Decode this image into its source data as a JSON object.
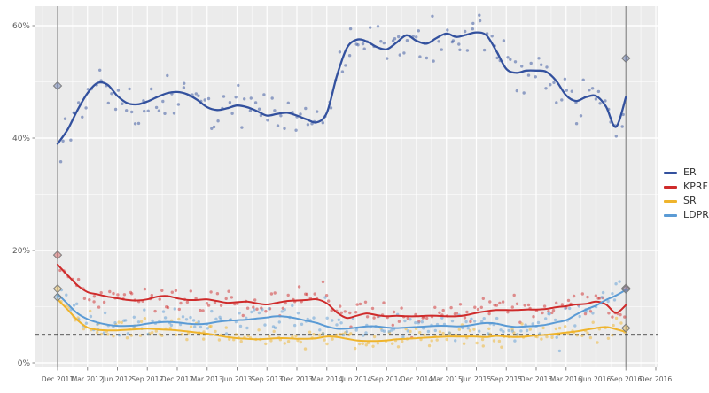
{
  "chart_data": {
    "type": "line",
    "title": "",
    "xlabel": "",
    "ylabel": "",
    "x_unit": "months since Dec 2011",
    "x_tick_step_months": 3,
    "x_tick_labels": [
      "Dec 2011",
      "Mar 2012",
      "Jun 2012",
      "Sep 2012",
      "Dec 2012",
      "Mar 2013",
      "Jun 2013",
      "Sep 2013",
      "Dec 2013",
      "Mar 2014",
      "Jun 2014",
      "Sep 2014",
      "Dec 2014",
      "Mar 2015",
      "Jun 2015",
      "Sep 2015",
      "Dec 2015",
      "Mar 2016",
      "Jun 2016",
      "Sep 2016",
      "Dec 2016"
    ],
    "y_ticks": [
      0,
      20,
      40,
      60
    ],
    "y_tick_labels": [
      "0%",
      "20%",
      "40%",
      "60%"
    ],
    "y_minor_ticks": [
      10,
      30,
      50
    ],
    "ylim": [
      -1,
      63.5
    ],
    "grid": true,
    "legend_position": "right",
    "threshold_line": {
      "value": 5,
      "style": "dashed",
      "color": "#2a2a2a"
    },
    "election_vlines": [
      {
        "label": "Dec 2011",
        "month": 0
      },
      {
        "label": "Sep 2016",
        "month": 57
      }
    ],
    "election_results": [
      {
        "election": "Dec 2011",
        "month": 0,
        "values": {
          "ER": 49.3,
          "KPRF": 19.2,
          "SR": 13.2,
          "LDPR": 11.7
        }
      },
      {
        "election": "Sep 2016",
        "month": 57,
        "values": {
          "ER": 54.2,
          "KPRF": 13.3,
          "SR": 6.2,
          "LDPR": 13.1
        }
      }
    ],
    "series": [
      {
        "name": "ER",
        "color": "#33519e",
        "monthly_values": [
          39.0,
          41.5,
          45.0,
          48.0,
          49.8,
          49.5,
          47.5,
          46.2,
          46.0,
          46.5,
          47.3,
          48.0,
          48.2,
          47.8,
          46.8,
          45.5,
          45.0,
          45.3,
          45.8,
          45.5,
          44.8,
          44.0,
          44.3,
          44.5,
          44.0,
          43.3,
          42.8,
          44.5,
          51.0,
          56.0,
          57.5,
          57.2,
          56.2,
          55.8,
          57.0,
          58.3,
          57.3,
          56.8,
          57.8,
          58.6,
          58.0,
          58.4,
          58.8,
          58.3,
          55.5,
          52.3,
          51.6,
          52.0,
          52.0,
          51.8,
          50.2,
          47.6,
          46.6,
          47.3,
          47.5,
          45.6,
          42.0,
          47.3
        ]
      },
      {
        "name": "KPRF",
        "color": "#cf2b2b",
        "monthly_values": [
          17.5,
          15.6,
          13.8,
          12.6,
          12.2,
          11.8,
          11.5,
          11.2,
          11.1,
          11.3,
          11.8,
          11.9,
          11.5,
          11.2,
          11.2,
          11.3,
          11.0,
          10.7,
          10.8,
          10.9,
          10.6,
          10.4,
          10.7,
          11.0,
          11.1,
          11.2,
          11.3,
          10.6,
          9.0,
          8.0,
          8.4,
          8.8,
          8.5,
          8.3,
          8.4,
          8.3,
          8.3,
          8.4,
          8.4,
          8.3,
          8.3,
          8.5,
          8.9,
          9.2,
          9.4,
          9.4,
          9.4,
          9.5,
          9.5,
          9.6,
          9.9,
          10.1,
          10.4,
          10.5,
          10.9,
          10.4,
          8.9,
          10.3
        ]
      },
      {
        "name": "SR",
        "color": "#efb42c",
        "monthly_values": [
          11.3,
          9.5,
          7.6,
          6.3,
          5.9,
          5.8,
          5.8,
          5.9,
          6.0,
          6.1,
          6.0,
          5.9,
          5.8,
          5.6,
          5.4,
          5.2,
          4.9,
          4.6,
          4.4,
          4.3,
          4.2,
          4.3,
          4.4,
          4.4,
          4.3,
          4.3,
          4.4,
          4.7,
          4.6,
          4.3,
          4.0,
          3.9,
          3.9,
          4.0,
          4.2,
          4.3,
          4.4,
          4.5,
          4.6,
          4.7,
          4.7,
          4.7,
          4.7,
          4.6,
          4.8,
          4.7,
          4.6,
          4.7,
          4.9,
          5.0,
          5.2,
          5.4,
          5.6,
          5.9,
          6.2,
          6.4,
          6.0,
          5.5
        ]
      },
      {
        "name": "LDPR",
        "color": "#5b9bd5",
        "monthly_values": [
          12.3,
          10.5,
          8.8,
          7.8,
          7.2,
          6.8,
          6.6,
          6.6,
          6.7,
          7.0,
          7.2,
          7.3,
          7.2,
          7.0,
          6.9,
          7.0,
          7.3,
          7.5,
          7.6,
          7.7,
          7.9,
          8.1,
          8.3,
          8.2,
          7.9,
          7.5,
          7.1,
          6.5,
          6.1,
          6.1,
          6.3,
          6.5,
          6.5,
          6.3,
          6.2,
          6.3,
          6.4,
          6.5,
          6.6,
          6.6,
          6.5,
          6.6,
          6.9,
          7.1,
          7.0,
          6.6,
          6.4,
          6.5,
          6.6,
          6.8,
          7.2,
          7.6,
          8.6,
          9.5,
          10.2,
          11.2,
          12.0,
          13.0
        ]
      }
    ],
    "scatter": {
      "points_per_month": 3,
      "base_jitter_pct": 1.55,
      "series_jitter": {
        "ER": 1.9,
        "KPRF": 1.15,
        "SR": 0.95,
        "LDPR": 1.05
      },
      "outlier_chance": 0.07,
      "outlier_mult": 2.2,
      "opacity": 0.5,
      "radius": 1.7,
      "seed": 987654321
    },
    "colors": {
      "panel_bg": "#ebebeb",
      "grid_major": "#ffffff",
      "grid_minor": "rgba(255,255,255,0.55)",
      "axis_text": "#5a5a5a",
      "tick_mark": "#8a8a8a",
      "election_vline": "#8e8e8e",
      "diamond_stroke": "#7d7d7d"
    }
  },
  "legend": {
    "entries": [
      "ER",
      "KPRF",
      "SR",
      "LDPR"
    ]
  }
}
